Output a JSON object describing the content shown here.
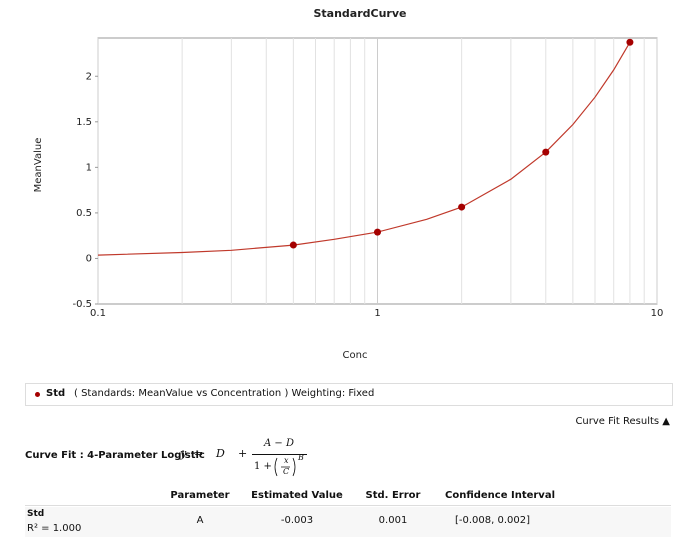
{
  "chart_data": {
    "type": "scatter",
    "title": "StandardCurve",
    "x_label": "Conc",
    "y_label": "MeanValue",
    "xscale": "log",
    "xlim": [
      0.1,
      10
    ],
    "xticks": [
      0.1,
      1,
      10
    ],
    "ylim": [
      -0.5,
      2.42
    ],
    "yticks": [
      -0.5,
      0,
      0.5,
      1,
      1.5,
      2
    ],
    "grid": "x",
    "series": [
      {
        "name": "Std",
        "color": "#a50000",
        "x": [
          0.5,
          1,
          2,
          4,
          8
        ],
        "values": [
          0.147,
          0.289,
          0.564,
          1.167,
          2.373
        ]
      }
    ],
    "fit": {
      "color": "#c0392b",
      "x": [
        0.1,
        0.2,
        0.3,
        0.5,
        0.7,
        1,
        1.5,
        2,
        3,
        4,
        5,
        6,
        7,
        8
      ],
      "values": [
        0.037,
        0.065,
        0.09,
        0.147,
        0.21,
        0.289,
        0.43,
        0.564,
        0.87,
        1.167,
        1.47,
        1.77,
        2.07,
        2.373
      ]
    }
  },
  "panel": {
    "legend_description": "( Standards: MeanValue vs Concentration ) Weighting: Fixed",
    "results_toggle": "Curve Fit Results ▲",
    "fit_label": "Curve Fit : 4-Parameter Logistic",
    "formula": {
      "lhs": "y",
      "equals": "=",
      "d": "D",
      "plus": "+",
      "numerator": "A − D",
      "one_plus": "1 +",
      "x": "x",
      "c": "C",
      "exp": "B"
    },
    "table": {
      "headers": [
        "Parameter",
        "Estimated Value",
        "Std. Error",
        "Confidence Interval"
      ],
      "rows": [
        {
          "name": "Std",
          "r2": "R² = 1.000",
          "cells": [
            "A",
            "-0.003",
            "0.001",
            "[-0.008, 0.002]"
          ]
        }
      ]
    }
  }
}
